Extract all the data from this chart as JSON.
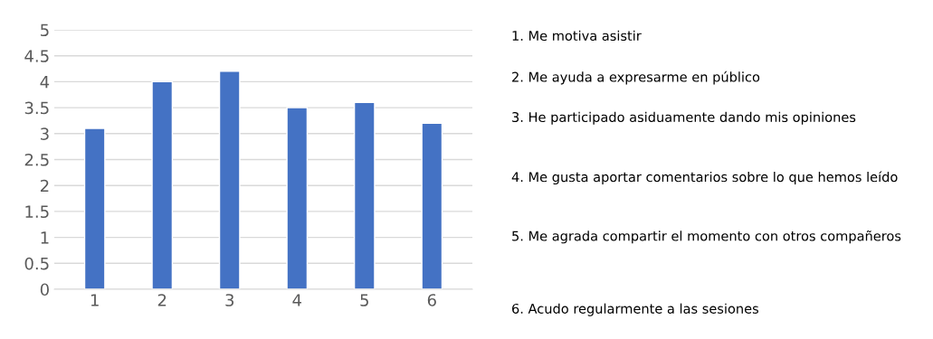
{
  "chart_data": {
    "type": "bar",
    "categories": [
      "1",
      "2",
      "3",
      "4",
      "5",
      "6"
    ],
    "values": [
      3.1,
      4.0,
      4.2,
      3.5,
      3.6,
      3.2
    ],
    "color": "#4472c4",
    "ylim": [
      0,
      5
    ],
    "yticks": [
      0,
      0.5,
      1,
      1.5,
      2,
      2.5,
      3,
      3.5,
      4,
      4.5,
      5
    ],
    "grid": "y",
    "legend": false,
    "annotations": [
      "1. Me motiva asistir",
      "2. Me ayuda a expresarme en público",
      "3. He participado asiduamente dando mis opiniones",
      "4. Me gusta aportar comentarios sobre lo que hemos leído",
      "5. Me agrada compartir el momento con otros compañeros",
      "6. Acudo regularmente a las sesiones"
    ]
  }
}
